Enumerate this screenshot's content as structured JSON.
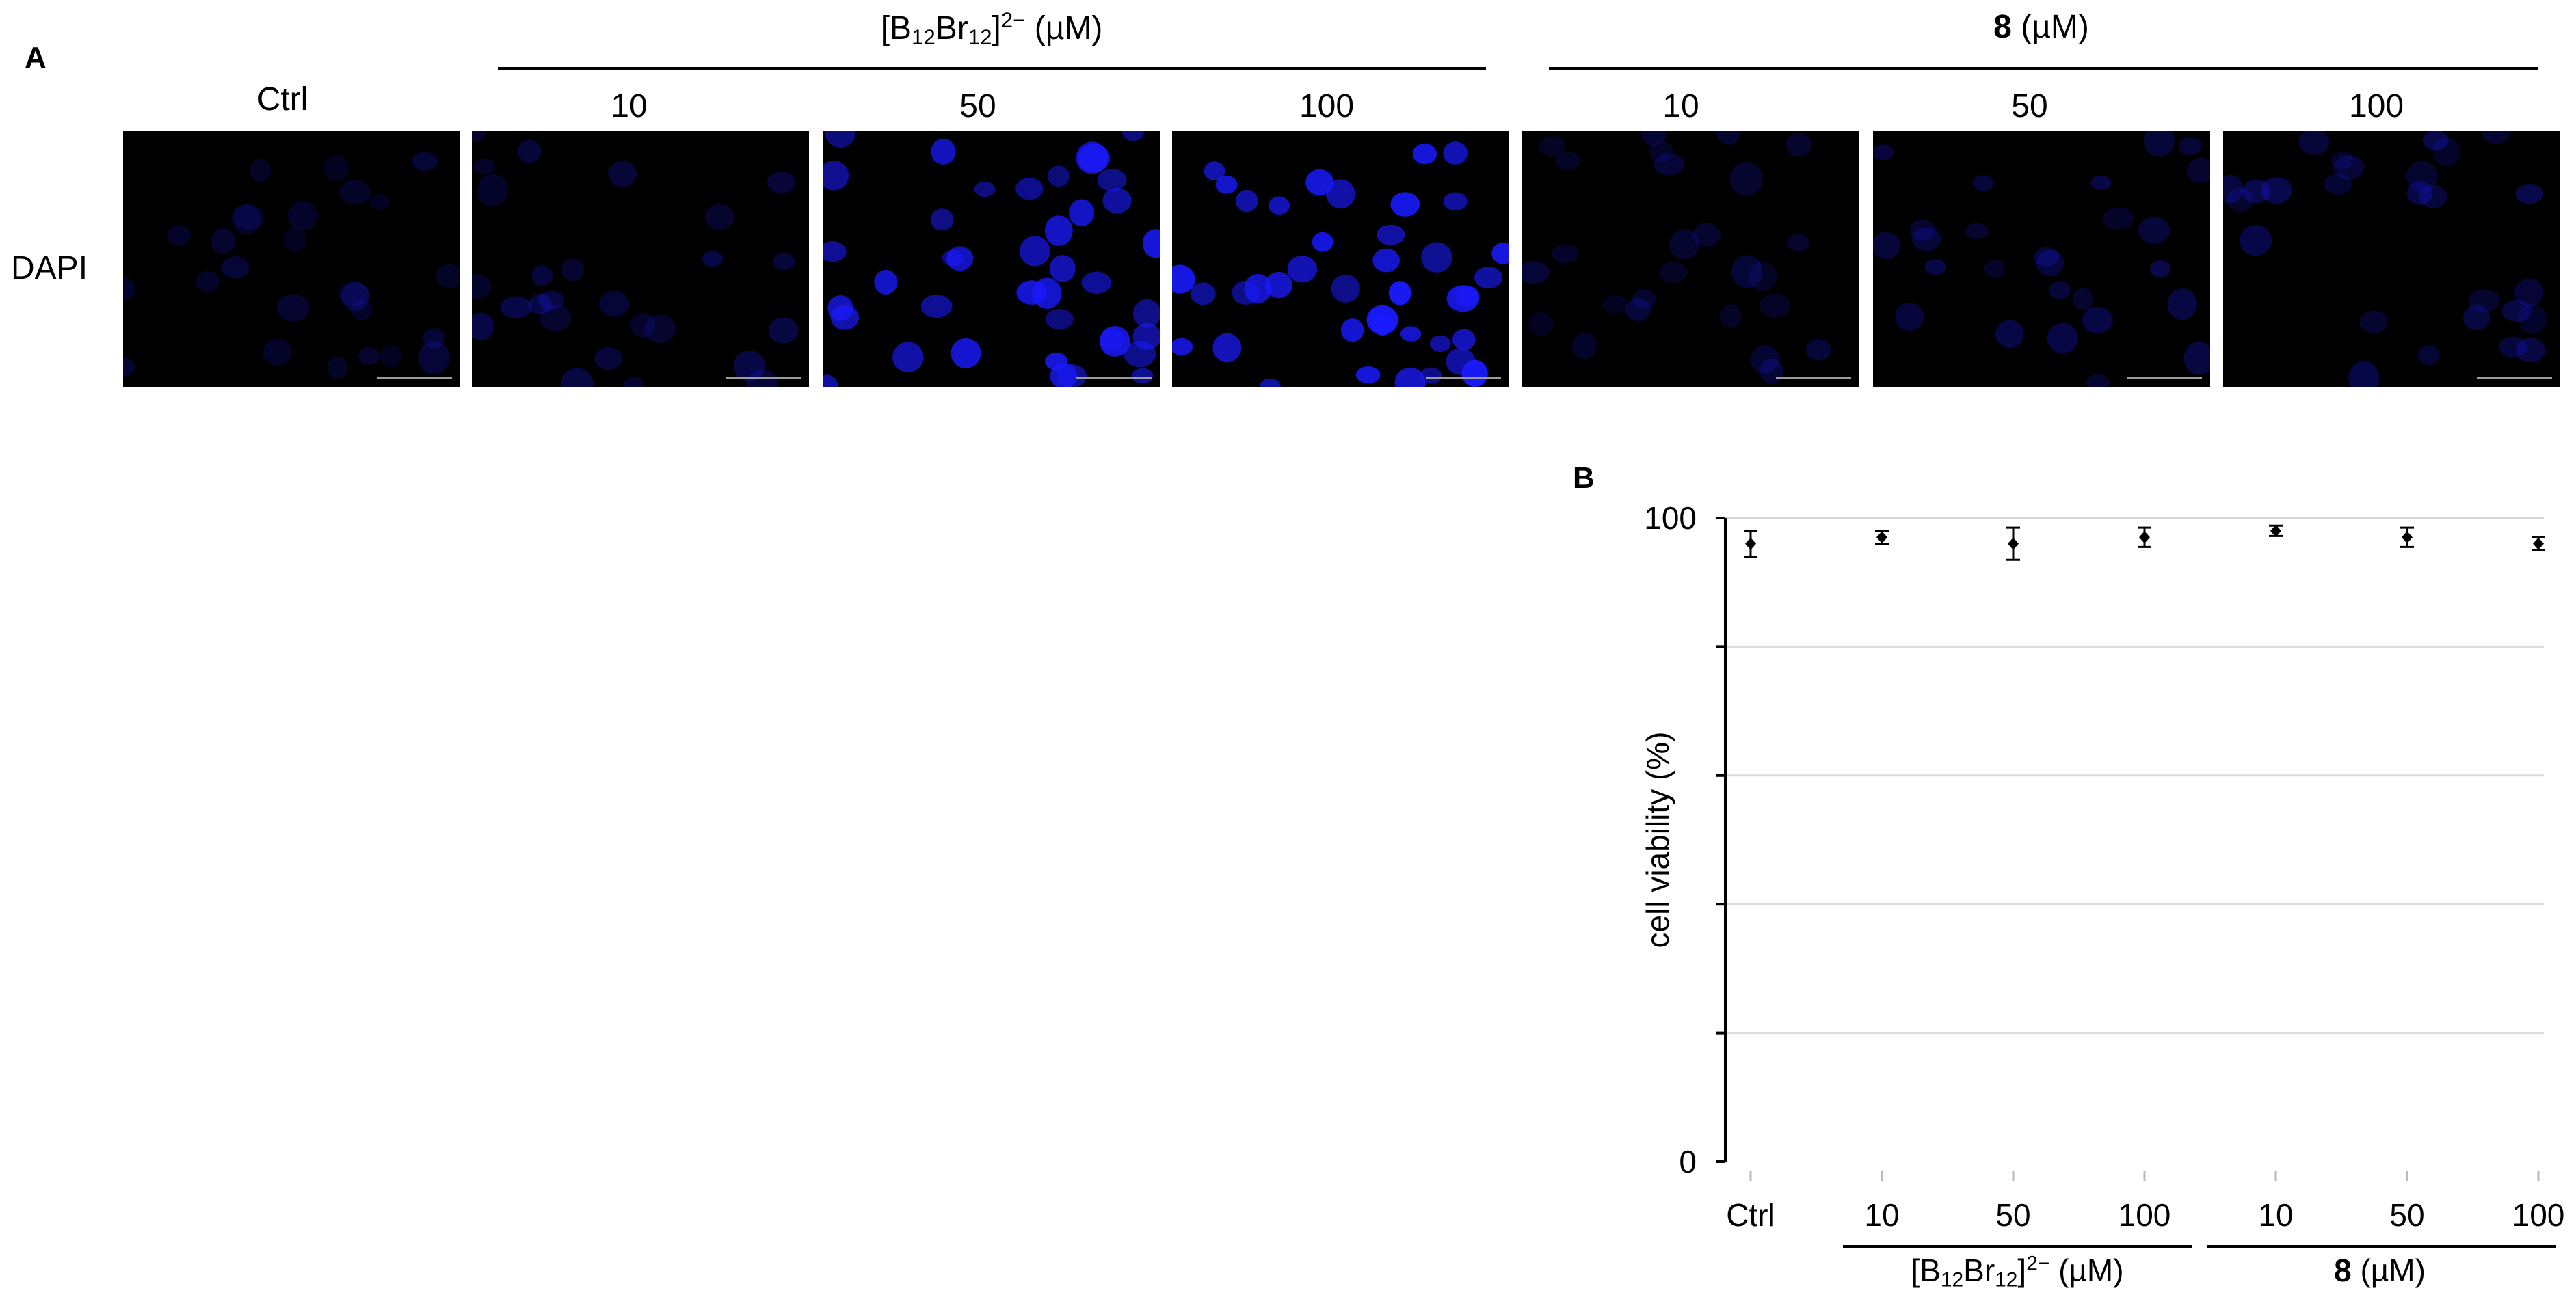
{
  "panel_a": {
    "letter": "A",
    "ctrl_label": "Ctrl",
    "row_label": "DAPI",
    "groups": [
      {
        "name": "[B12Br12]2−",
        "name_base": "B",
        "name_sub1": "12",
        "name_mid": "Br",
        "name_sub2": "12",
        "name_sup": "2−",
        "unit": "(µM)",
        "doses": [
          "10",
          "50",
          "100"
        ]
      },
      {
        "name": "8",
        "unit": "(µM)",
        "doses": [
          "10",
          "50",
          "100"
        ]
      }
    ],
    "nuclei_color": "#1a1aff",
    "background_color": "#000000",
    "relative_intensity": [
      0.22,
      0.28,
      0.85,
      0.95,
      0.22,
      0.3,
      0.3
    ]
  },
  "panel_b": {
    "letter": "B"
  },
  "chart_data": {
    "type": "scatter",
    "ylabel": "cell viability (%)",
    "ylim": [
      0,
      100
    ],
    "ytick_labels": [
      "0",
      "100"
    ],
    "yticks": [
      0,
      20,
      40,
      60,
      80,
      100
    ],
    "grid": true,
    "categories": [
      "Ctrl",
      "10",
      "50",
      "100",
      "10",
      "50",
      "100"
    ],
    "values": [
      96,
      97,
      96,
      97,
      98,
      97,
      96
    ],
    "errors": [
      2,
      1,
      2.5,
      1.5,
      0.8,
      1.5,
      1
    ],
    "group_labels": [
      {
        "name": "[B12Br12]2− (µM)",
        "categories": [
          "10",
          "50",
          "100"
        ]
      },
      {
        "name": "8 (µM)",
        "categories": [
          "10",
          "50",
          "100"
        ]
      }
    ]
  }
}
